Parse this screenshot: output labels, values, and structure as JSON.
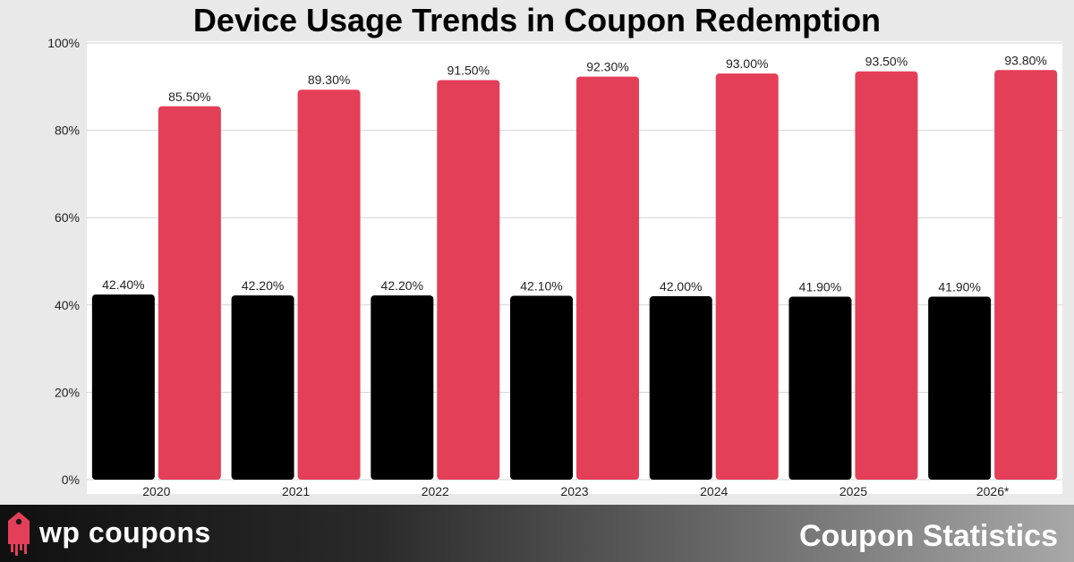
{
  "header": {
    "title": "Device Usage Trends in Coupon Redemption"
  },
  "footer": {
    "brand": "wp coupons",
    "section": "Coupon Statistics",
    "logo_icon": "price-tag-icon"
  },
  "colors": {
    "series_0": "#000000",
    "series_1": "#e43f58",
    "background": "#e9e9e9",
    "plot": "#ffffff"
  },
  "chart_data": {
    "type": "bar",
    "title": "Device Usage Trends in Coupon Redemption",
    "xlabel": "",
    "ylabel": "",
    "categories": [
      "2020",
      "2021",
      "2022",
      "2023",
      "2024",
      "2025",
      "2026*"
    ],
    "series": [
      {
        "values": [
          42.4,
          42.2,
          42.2,
          42.1,
          42.0,
          41.9,
          41.9
        ],
        "labels": [
          "42.40%",
          "42.20%",
          "42.20%",
          "42.10%",
          "42.00%",
          "41.90%",
          "41.90%"
        ]
      },
      {
        "values": [
          85.5,
          89.3,
          91.5,
          92.3,
          93.0,
          93.5,
          93.8
        ],
        "labels": [
          "85.50%",
          "89.30%",
          "91.50%",
          "92.30%",
          "93.00%",
          "93.50%",
          "93.80%"
        ]
      }
    ],
    "ylim": [
      0,
      100
    ],
    "yticks": [
      0,
      20,
      40,
      60,
      80,
      100
    ],
    "ytick_labels": [
      "0%",
      "20%",
      "40%",
      "60%",
      "80%",
      "100%"
    ],
    "grid": true,
    "legend": "none"
  }
}
